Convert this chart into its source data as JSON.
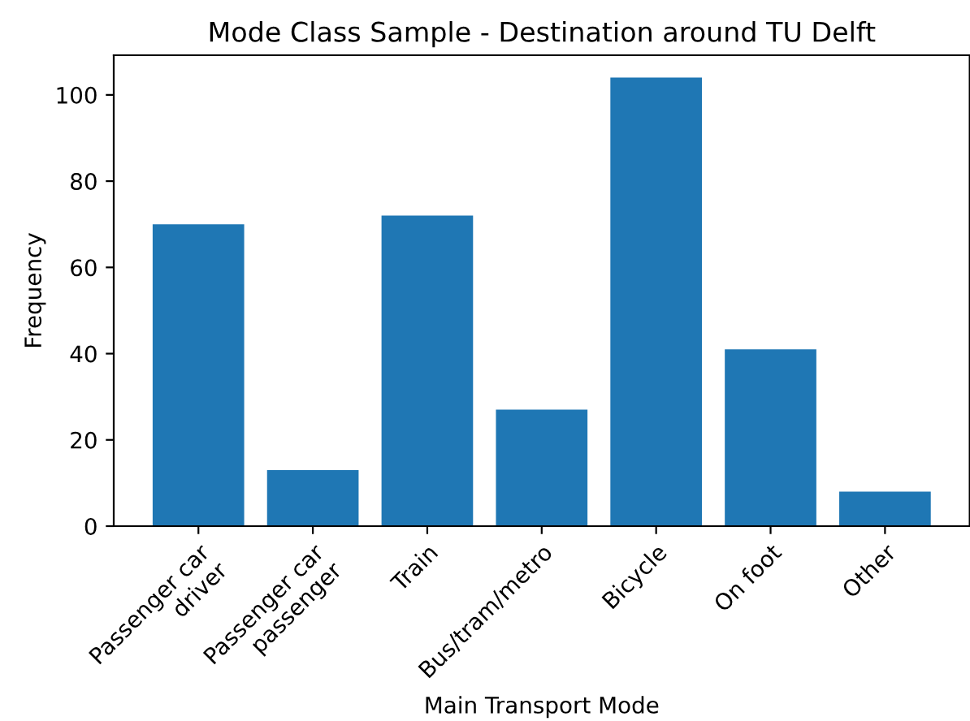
{
  "chart_data": {
    "type": "bar",
    "title": "Mode Class Sample - Destination around TU Delft",
    "xlabel": "Main Transport Mode",
    "ylabel": "Frequency",
    "categories": [
      "Passenger car\ndriver",
      "Passenger car\npassenger",
      "Train",
      "Bus/tram/metro",
      "Bicycle",
      "On foot",
      "Other"
    ],
    "values": [
      70,
      13,
      72,
      27,
      104,
      41,
      8
    ],
    "color": "#1f77b4",
    "ylim": [
      0,
      109.2
    ],
    "yticks": [
      0,
      20,
      40,
      60,
      80,
      100
    ],
    "grid": false
  }
}
